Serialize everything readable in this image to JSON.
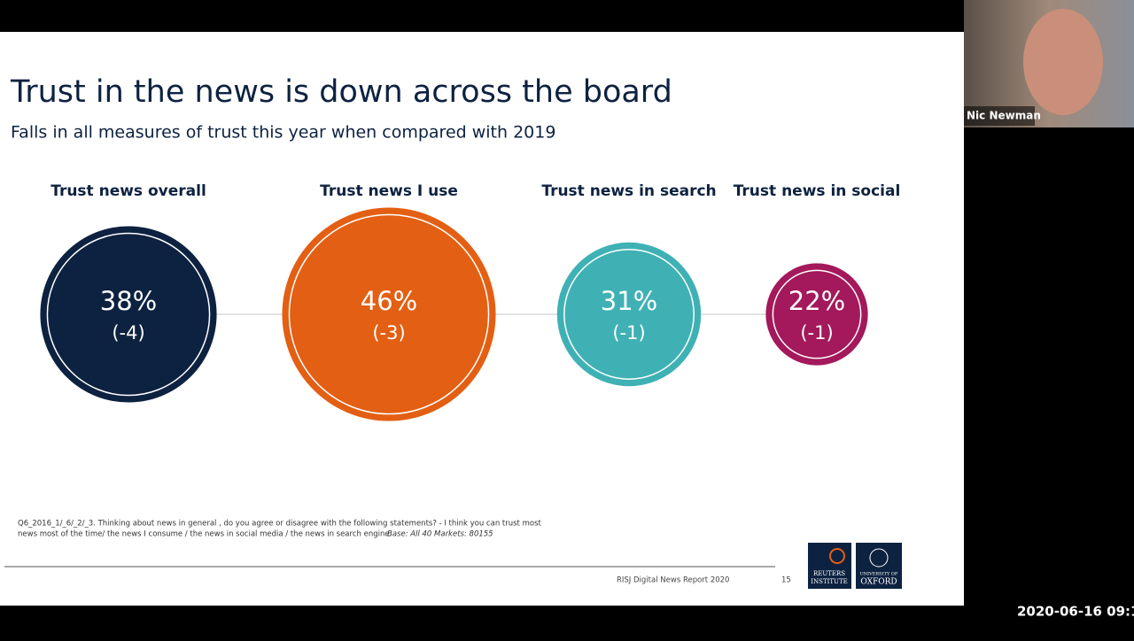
{
  "window": {
    "participant_name": "Nic Newman",
    "timestamp": "2020-06-16 09:1"
  },
  "chart_data": {
    "type": "bubble",
    "title": "Trust in the news is down across the board",
    "subtitle": "Falls in all measures of trust this year when compared with 2019",
    "categories": [
      "Trust news overall",
      "Trust news I use",
      "Trust news in search",
      "Trust news in social"
    ],
    "values": [
      38,
      46,
      31,
      22
    ],
    "value_labels": [
      "38%",
      "46%",
      "31%",
      "22%"
    ],
    "changes": [
      -4,
      -3,
      -1,
      -1
    ],
    "change_labels": [
      "(-4)",
      "(-3)",
      "(-1)",
      "(-1)"
    ],
    "colors": [
      "#0d2240",
      "#e35f13",
      "#3fb1b5",
      "#a3195b"
    ]
  },
  "slide": {
    "footnote_line1": "Q6_2016_1/_6/_2/_3. Thinking about news in general , do you agree or disagree with the following statements? - I think you can trust most",
    "footnote_line2": "news most of the time/ the news I consume / the news in social media / the news in search engine.",
    "footnote_base": "Base: All 40 Markets: 80155",
    "footer": "RISJ Digital News Report 2020",
    "page_number": 15,
    "logo1": [
      "REUTERS",
      "INSTITUTE"
    ],
    "logo2": [
      "UNIVERSITY OF",
      "OXFORD"
    ]
  }
}
